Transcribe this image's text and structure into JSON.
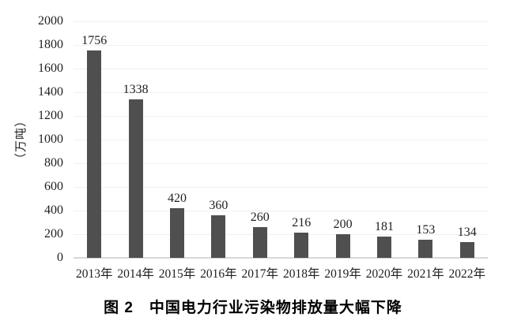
{
  "chart_data": {
    "type": "bar",
    "categories": [
      "2013年",
      "2014年",
      "2015年",
      "2016年",
      "2017年",
      "2018年",
      "2019年",
      "2020年",
      "2021年",
      "2022年"
    ],
    "values": [
      1756,
      1338,
      420,
      360,
      260,
      216,
      200,
      181,
      153,
      134
    ],
    "title": "图 2　中国电力行业污染物排放量大幅下降",
    "xlabel": "",
    "ylabel": "（万吨）",
    "ylim": [
      0,
      2000
    ],
    "ytick_step": 200,
    "grid": true,
    "legend_position": "none",
    "data_labels_shown": true,
    "colors": {
      "bar": "#4f4f4f",
      "gridline": "#f0f0f0",
      "axis_line": "#d8d8d8",
      "tick_text": "#1f1f1f",
      "caption_text": "#000000",
      "background": "#ffffff"
    }
  }
}
